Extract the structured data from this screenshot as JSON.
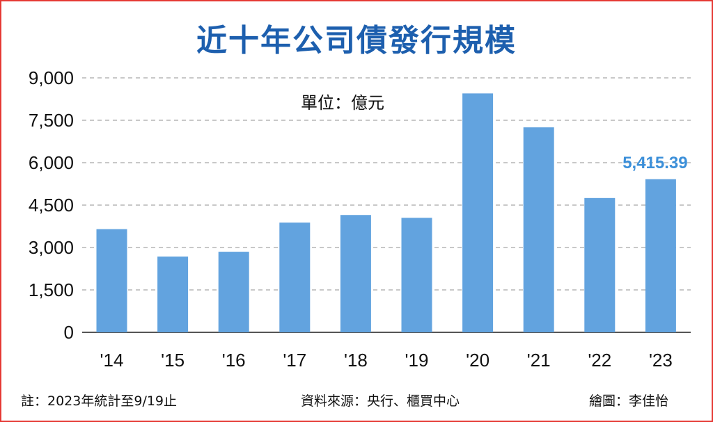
{
  "title": "近十年公司債發行規模",
  "unit_note": "單位：億元",
  "footer": {
    "note": "註：2023年統計至9/19止",
    "source": "資料來源：央行、櫃買中心",
    "credit": "繪圖：李佳怡"
  },
  "colors": {
    "bar": "#62a3df",
    "title": "#1d5fae",
    "highlight_label": "#3b8fd9",
    "border": "#e53935"
  },
  "chart_data": {
    "type": "bar",
    "title": "近十年公司債發行規模",
    "categories": [
      "'14",
      "'15",
      "'16",
      "'17",
      "'18",
      "'19",
      "'20",
      "'21",
      "'22",
      "'23"
    ],
    "values": [
      3650,
      2680,
      2850,
      3880,
      4150,
      4050,
      8450,
      7250,
      4750,
      5415.39
    ],
    "ylim": [
      0,
      9000
    ],
    "yticks": [
      0,
      1500,
      3000,
      4500,
      6000,
      7500,
      9000
    ],
    "ytick_labels": [
      "0",
      "1,500",
      "3,000",
      "4,500",
      "6,000",
      "7,500",
      "9,000"
    ],
    "data_labels": [
      {
        "index": 9,
        "text": "5,415.39"
      }
    ],
    "grid": true,
    "xlabel": "",
    "ylabel": ""
  }
}
